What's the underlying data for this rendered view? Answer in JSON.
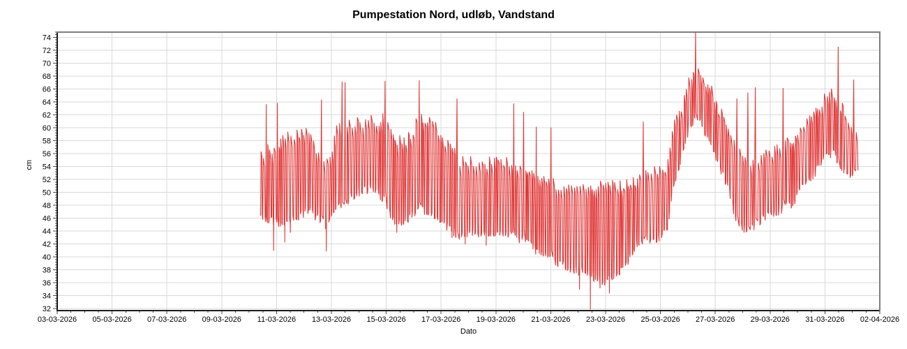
{
  "chart_data": {
    "type": "line",
    "title": "Pumpestation Nord, udløb, Vandstand",
    "xlabel": "Dato",
    "ylabel": "cm",
    "legend": "none",
    "grid": "major-both",
    "x_tick_labels": [
      "03-03-2026",
      "05-03-2026",
      "07-03-2026",
      "09-03-2026",
      "11-03-2026",
      "13-03-2026",
      "15-03-2026",
      "17-03-2026",
      "19-03-2026",
      "21-03-2026",
      "23-03-2026",
      "25-03-2026",
      "27-03-2026",
      "29-03-2026",
      "31-03-2026",
      "02-04-2026"
    ],
    "x_tick_days": [
      0,
      2,
      4,
      6,
      8,
      10,
      12,
      14,
      16,
      18,
      20,
      22,
      24,
      26,
      28,
      30
    ],
    "xlim_days": [
      0,
      30
    ],
    "y_ticks": [
      32,
      34,
      36,
      38,
      40,
      42,
      44,
      46,
      48,
      50,
      52,
      54,
      56,
      58,
      60,
      62,
      64,
      66,
      68,
      70,
      72,
      74
    ],
    "ylim": [
      31.7,
      74.8
    ],
    "x_minor_step_days": 0.5,
    "y_minor_step": 0.4,
    "line_color": "#e03636",
    "grid_color": "#d9d9d9",
    "axis_color": "#444444",
    "frame_dark_color": "#1a1a1a",
    "frame_light_color": "#7e7e7e",
    "series": [
      {
        "name": "Vandstand",
        "unit": "cm",
        "start_day": 7.42,
        "end_day": 29.22,
        "end_value": 53.5,
        "cycle_days_min": 0.055,
        "cycle_days_max": 0.125,
        "envelope": [
          [
            7.42,
            46,
            57
          ],
          [
            8.0,
            44.5,
            58
          ],
          [
            8.6,
            45,
            60
          ],
          [
            9.2,
            46.5,
            60.5
          ],
          [
            9.6,
            45,
            56
          ],
          [
            9.9,
            44,
            55.5
          ],
          [
            10.3,
            47,
            61.5
          ],
          [
            10.9,
            49,
            62
          ],
          [
            11.5,
            50,
            62
          ],
          [
            12.0,
            48,
            62.5
          ],
          [
            12.4,
            44,
            59
          ],
          [
            12.8,
            45,
            59
          ],
          [
            13.2,
            47,
            62.5
          ],
          [
            13.7,
            46,
            62
          ],
          [
            14.2,
            44,
            59
          ],
          [
            14.7,
            42.5,
            56
          ],
          [
            15.2,
            43,
            55.5
          ],
          [
            16.4,
            43,
            55.5
          ],
          [
            17.0,
            42,
            55
          ],
          [
            17.6,
            40,
            53.5
          ],
          [
            18.2,
            38.5,
            52
          ],
          [
            18.8,
            37.5,
            51.5
          ],
          [
            19.4,
            36.5,
            51.8
          ],
          [
            20.0,
            35.5,
            51.8
          ],
          [
            20.6,
            37,
            52
          ],
          [
            21.2,
            41.5,
            53
          ],
          [
            21.8,
            42,
            54.5
          ],
          [
            22.25,
            43,
            55
          ],
          [
            22.5,
            50,
            61
          ],
          [
            22.8,
            55,
            64.5
          ],
          [
            23.0,
            58,
            66.5
          ],
          [
            23.2,
            60,
            70
          ],
          [
            23.35,
            61,
            71.5
          ],
          [
            23.5,
            60,
            69
          ],
          [
            23.7,
            58,
            68
          ],
          [
            23.9,
            57,
            66.5
          ],
          [
            24.2,
            53,
            63.5
          ],
          [
            24.5,
            50,
            61
          ],
          [
            24.8,
            45,
            58
          ],
          [
            25.1,
            43.5,
            56
          ],
          [
            25.4,
            44,
            55.5
          ],
          [
            25.7,
            45,
            56.5
          ],
          [
            26.0,
            46,
            57
          ],
          [
            26.4,
            46.5,
            58
          ],
          [
            26.8,
            47.5,
            59
          ],
          [
            27.2,
            50,
            61
          ],
          [
            27.6,
            52,
            63
          ],
          [
            28.0,
            54.5,
            65.5
          ],
          [
            28.3,
            55.5,
            67
          ],
          [
            28.6,
            53.5,
            64.5
          ],
          [
            28.9,
            52,
            62.5
          ],
          [
            29.1,
            52.5,
            61
          ],
          [
            29.22,
            53,
            60
          ]
        ],
        "spikes_up": [
          [
            7.66,
            63.6
          ],
          [
            8.07,
            63.8
          ],
          [
            9.64,
            64.3
          ],
          [
            10.38,
            67.1
          ],
          [
            10.48,
            67.0
          ],
          [
            11.93,
            67.2
          ],
          [
            13.23,
            67.3
          ],
          [
            14.58,
            64.5
          ],
          [
            16.67,
            63.7
          ],
          [
            17.07,
            62.4
          ],
          [
            17.51,
            60.1
          ],
          [
            18.07,
            60.0
          ],
          [
            21.4,
            60.9
          ],
          [
            23.28,
            74.8
          ],
          [
            24.83,
            64.5
          ],
          [
            25.27,
            65.4
          ],
          [
            25.52,
            66.2
          ],
          [
            26.46,
            66.1
          ],
          [
            28.52,
            72.5
          ],
          [
            29.08,
            67.4
          ]
        ],
        "spikes_down": [
          [
            7.96,
            41.0
          ],
          [
            8.3,
            42.3
          ],
          [
            8.6,
            43.8
          ],
          [
            9.82,
            40.9
          ],
          [
            12.45,
            43.8
          ],
          [
            14.4,
            43.0
          ],
          [
            14.91,
            42.0
          ],
          [
            15.72,
            41.8
          ],
          [
            19.11,
            35.0
          ],
          [
            19.47,
            31.9
          ],
          [
            19.85,
            35.2
          ],
          [
            20.18,
            34.4
          ]
        ]
      }
    ]
  }
}
